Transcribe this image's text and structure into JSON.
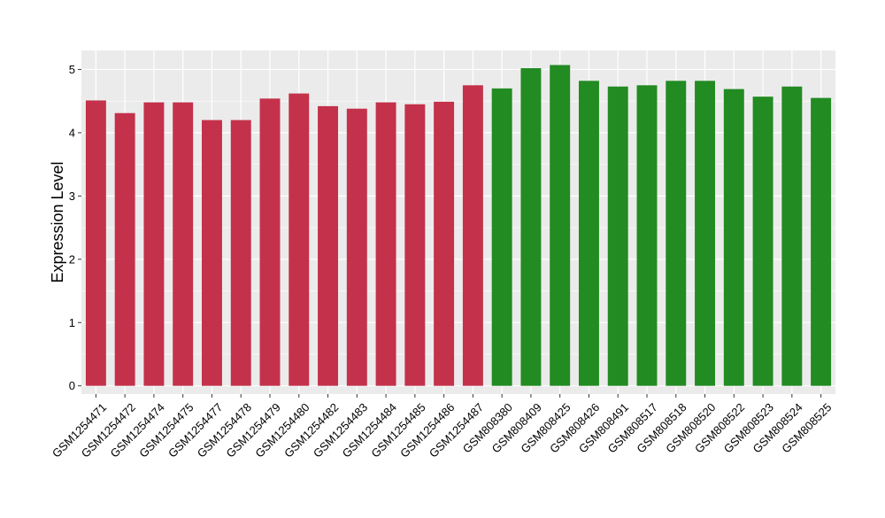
{
  "chart_data": {
    "type": "bar",
    "title": "",
    "xlabel": "",
    "ylabel": "Expression Level",
    "ylim": [
      -0.13,
      5.3
    ],
    "yticks": [
      0,
      1,
      2,
      3,
      4,
      5
    ],
    "grid": true,
    "legend": "none",
    "categories": [
      "GSM1254471",
      "GSM1254472",
      "GSM1254474",
      "GSM1254475",
      "GSM1254477",
      "GSM1254478",
      "GSM1254479",
      "GSM1254480",
      "GSM1254482",
      "GSM1254483",
      "GSM1254484",
      "GSM1254485",
      "GSM1254486",
      "GSM1254487",
      "GSM808380",
      "GSM808409",
      "GSM808425",
      "GSM808426",
      "GSM808491",
      "GSM808517",
      "GSM808518",
      "GSM808520",
      "GSM808522",
      "GSM808523",
      "GSM808524",
      "GSM808525"
    ],
    "values": [
      4.51,
      4.31,
      4.48,
      4.48,
      4.2,
      4.2,
      4.54,
      4.62,
      4.42,
      4.38,
      4.48,
      4.45,
      4.49,
      4.75,
      4.7,
      5.02,
      5.07,
      4.82,
      4.73,
      4.75,
      4.82,
      4.82,
      4.69,
      4.57,
      4.73,
      4.55
    ],
    "groups": [
      {
        "count": 14,
        "color": "#C4314B"
      },
      {
        "count": 12,
        "color": "#228B22"
      }
    ],
    "panel_background": "#EBEBEB",
    "grid_color": "#FFFFFF",
    "axis_text_color": "#000000"
  }
}
